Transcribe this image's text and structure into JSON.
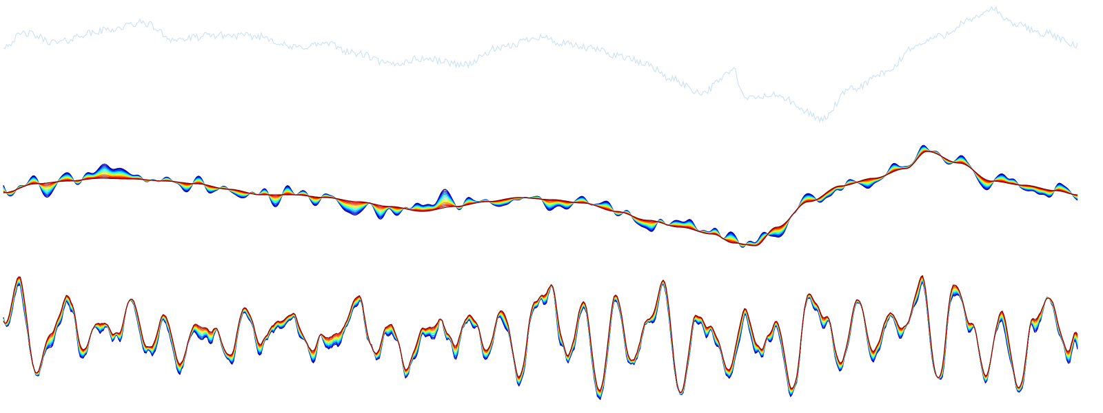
{
  "chart_data": [
    {
      "type": "line",
      "title": "",
      "xlabel": "",
      "ylabel": "",
      "grid": false,
      "legend": "none",
      "axes_visible": false,
      "x_range": [
        0,
        1
      ],
      "y_range": [
        -1,
        1
      ],
      "colors": {
        "line": "#cfe3f4"
      },
      "x": [
        0.0,
        0.02,
        0.05,
        0.08,
        0.1,
        0.13,
        0.16,
        0.2,
        0.24,
        0.27,
        0.3,
        0.33,
        0.36,
        0.39,
        0.43,
        0.46,
        0.5,
        0.52,
        0.55,
        0.57,
        0.6,
        0.62,
        0.65,
        0.68,
        0.69,
        0.72,
        0.75,
        0.76,
        0.79,
        0.82,
        0.85,
        0.87,
        0.9,
        0.92,
        0.94,
        0.97,
        1.0
      ],
      "series": [
        {
          "values": [
            0.35,
            0.55,
            0.4,
            0.55,
            0.62,
            0.72,
            0.45,
            0.52,
            0.5,
            0.32,
            0.38,
            0.22,
            0.05,
            0.14,
            0.05,
            0.3,
            0.5,
            0.38,
            0.3,
            0.2,
            0.05,
            -0.18,
            -0.4,
            -0.05,
            -0.5,
            -0.45,
            -0.72,
            -0.85,
            -0.35,
            -0.1,
            0.35,
            0.5,
            0.75,
            0.95,
            0.7,
            0.55,
            0.35
          ]
        }
      ]
    },
    {
      "type": "line",
      "title": "",
      "xlabel": "",
      "ylabel": "",
      "grid": false,
      "legend": "none",
      "axes_visible": false,
      "x_range": [
        0,
        1
      ],
      "y_range": [
        -1,
        1
      ],
      "colormap": "jet",
      "series_count": 12,
      "colors": {
        "colormap_stops": [
          "#00007f",
          "#0000ff",
          "#00bfff",
          "#00ffff",
          "#7fff7f",
          "#ffff00",
          "#ff7f00",
          "#ff0000",
          "#7f0000"
        ]
      },
      "x": [
        0.0,
        0.03,
        0.06,
        0.09,
        0.12,
        0.15,
        0.18,
        0.21,
        0.24,
        0.27,
        0.3,
        0.33,
        0.36,
        0.39,
        0.42,
        0.45,
        0.48,
        0.51,
        0.54,
        0.57,
        0.6,
        0.63,
        0.66,
        0.68,
        0.7,
        0.72,
        0.75,
        0.78,
        0.81,
        0.84,
        0.86,
        0.89,
        0.92,
        0.95,
        0.98,
        1.0
      ],
      "series": [
        {
          "values": [
            0.15,
            0.28,
            0.32,
            0.36,
            0.35,
            0.32,
            0.28,
            0.2,
            0.12,
            0.12,
            0.08,
            0.02,
            -0.05,
            -0.12,
            -0.05,
            0.02,
            0.08,
            0.05,
            0.0,
            -0.12,
            -0.25,
            -0.35,
            -0.45,
            -0.58,
            -0.62,
            -0.35,
            0.02,
            0.25,
            0.36,
            0.5,
            0.75,
            0.58,
            0.32,
            0.26,
            0.18,
            0.12
          ]
        }
      ]
    },
    {
      "type": "line",
      "title": "",
      "xlabel": "",
      "ylabel": "",
      "grid": false,
      "legend": "none",
      "axes_visible": false,
      "x_range": [
        0,
        1
      ],
      "y_range": [
        -1,
        1
      ],
      "colormap": "jet",
      "series_count": 12,
      "colors": {
        "colormap_stops": [
          "#00007f",
          "#0000ff",
          "#00bfff",
          "#00ffff",
          "#7fff7f",
          "#ffff00",
          "#ff7f00",
          "#ff0000",
          "#7f0000"
        ]
      },
      "x": [
        0.0,
        0.015,
        0.03,
        0.045,
        0.06,
        0.075,
        0.09,
        0.105,
        0.12,
        0.135,
        0.15,
        0.165,
        0.18,
        0.195,
        0.21,
        0.225,
        0.24,
        0.255,
        0.27,
        0.285,
        0.3,
        0.315,
        0.33,
        0.345,
        0.36,
        0.375,
        0.39,
        0.405,
        0.42,
        0.435,
        0.45,
        0.465,
        0.48,
        0.495,
        0.51,
        0.525,
        0.54,
        0.555,
        0.57,
        0.585,
        0.6,
        0.615,
        0.63,
        0.645,
        0.66,
        0.675,
        0.69,
        0.705,
        0.72,
        0.735,
        0.75,
        0.765,
        0.78,
        0.795,
        0.81,
        0.825,
        0.84,
        0.855,
        0.87,
        0.885,
        0.9,
        0.915,
        0.93,
        0.945,
        0.96,
        0.975,
        0.99,
        1.0
      ],
      "series": [
        {
          "values": [
            0.1,
            0.9,
            -0.6,
            0.1,
            0.6,
            -0.2,
            0.2,
            0.0,
            0.5,
            -0.2,
            0.3,
            -0.4,
            0.2,
            0.1,
            -0.3,
            0.4,
            -0.1,
            0.2,
            0.3,
            -0.2,
            0.0,
            0.1,
            0.6,
            -0.3,
            0.2,
            -0.5,
            0.1,
            0.2,
            -0.1,
            0.3,
            -0.2,
            0.4,
            -0.6,
            0.5,
            0.7,
            -0.3,
            0.5,
            -0.8,
            0.6,
            -0.4,
            0.2,
            0.8,
            -0.9,
            0.3,
            0.1,
            -0.5,
            0.4,
            -0.2,
            0.2,
            -0.8,
            0.6,
            0.3,
            -0.4,
            0.5,
            -0.2,
            0.3,
            0.1,
            0.9,
            -0.7,
            0.8,
            0.2,
            -0.6,
            0.4,
            -0.8,
            0.3,
            0.5,
            -0.2,
            0.1
          ]
        }
      ]
    }
  ]
}
